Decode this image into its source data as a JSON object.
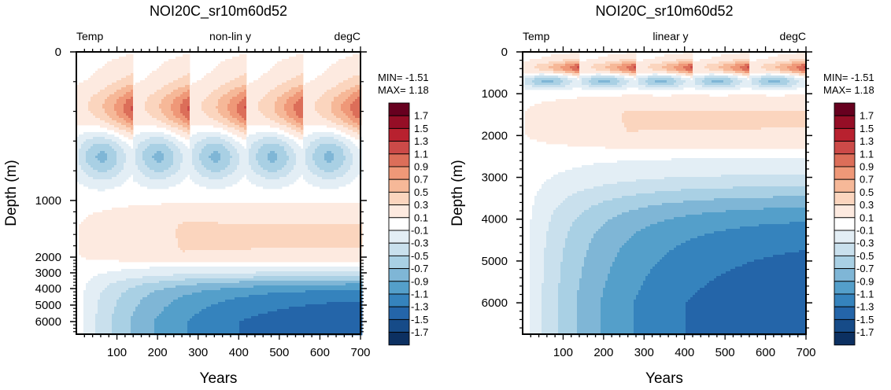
{
  "chart_data": [
    {
      "type": "heatmap",
      "subtype": "filled-contour",
      "title": "NOI20C_sr10m60d52",
      "left_string": "Temp",
      "center_string": "non-lin y",
      "right_string": "degC",
      "xlabel": "Years",
      "ylabel": "Depth (m)",
      "xlim": [
        0,
        700
      ],
      "ylim": [
        0,
        6750
      ],
      "y_reversed": true,
      "y_scale": "non-linear",
      "x_ticks": [
        100,
        200,
        300,
        400,
        500,
        600,
        700
      ],
      "y_ticks": [
        0,
        1000,
        2000,
        3000,
        4000,
        5000,
        6000
      ],
      "stats": {
        "min_label": "MIN=",
        "min": "-1.51",
        "max_label": "MAX=",
        "max": " 1.18"
      },
      "features": [
        {
          "desc": "periodic warm tongues near 300-600 m peaking ~1.1 before each cycle break at years 140, 280, 420, 560, 700"
        },
        {
          "desc": "cool cells (-0.3 to -0.7) at ~500-900 m, one per 140-year cycle"
        },
        {
          "desc": "weak warm layer (0.1-0.5) between ~1000-2500 m"
        },
        {
          "desc": "deep cooling below ~3000 m strengthening with time to about -1.5"
        }
      ]
    },
    {
      "type": "heatmap",
      "subtype": "filled-contour",
      "title": "NOI20C_sr10m60d52",
      "left_string": "Temp",
      "center_string": "linear y",
      "right_string": "degC",
      "xlabel": "Years",
      "ylabel": "Depth (m)",
      "xlim": [
        0,
        700
      ],
      "ylim": [
        0,
        6750
      ],
      "y_reversed": true,
      "y_scale": "linear",
      "x_ticks": [
        100,
        200,
        300,
        400,
        500,
        600,
        700
      ],
      "y_ticks": [
        0,
        1000,
        2000,
        3000,
        4000,
        5000,
        6000
      ],
      "stats": {
        "min_label": "MIN=",
        "min": "-1.51",
        "max_label": "MAX=",
        "max": " 1.18"
      }
    }
  ],
  "colorbar": {
    "labels": [
      "1.7",
      "1.5",
      "1.3",
      "1.1",
      "0.9",
      "0.7",
      "0.5",
      "0.3",
      "0.1",
      "-0.1",
      "-0.3",
      "-0.5",
      "-0.7",
      "-0.9",
      "-1.1",
      "-1.3",
      "-1.5",
      "-1.7"
    ],
    "colors": [
      "#67001f",
      "#950e26",
      "#b8212f",
      "#cc4a48",
      "#dc6e59",
      "#ef9878",
      "#f6b898",
      "#fbd5be",
      "#fdeae0",
      "#ffffff",
      "#e3eef5",
      "#c9e0ed",
      "#a9d0e4",
      "#7fb6d6",
      "#549fca",
      "#3583bd",
      "#2465a9",
      "#164b88",
      "#0c3061"
    ]
  }
}
